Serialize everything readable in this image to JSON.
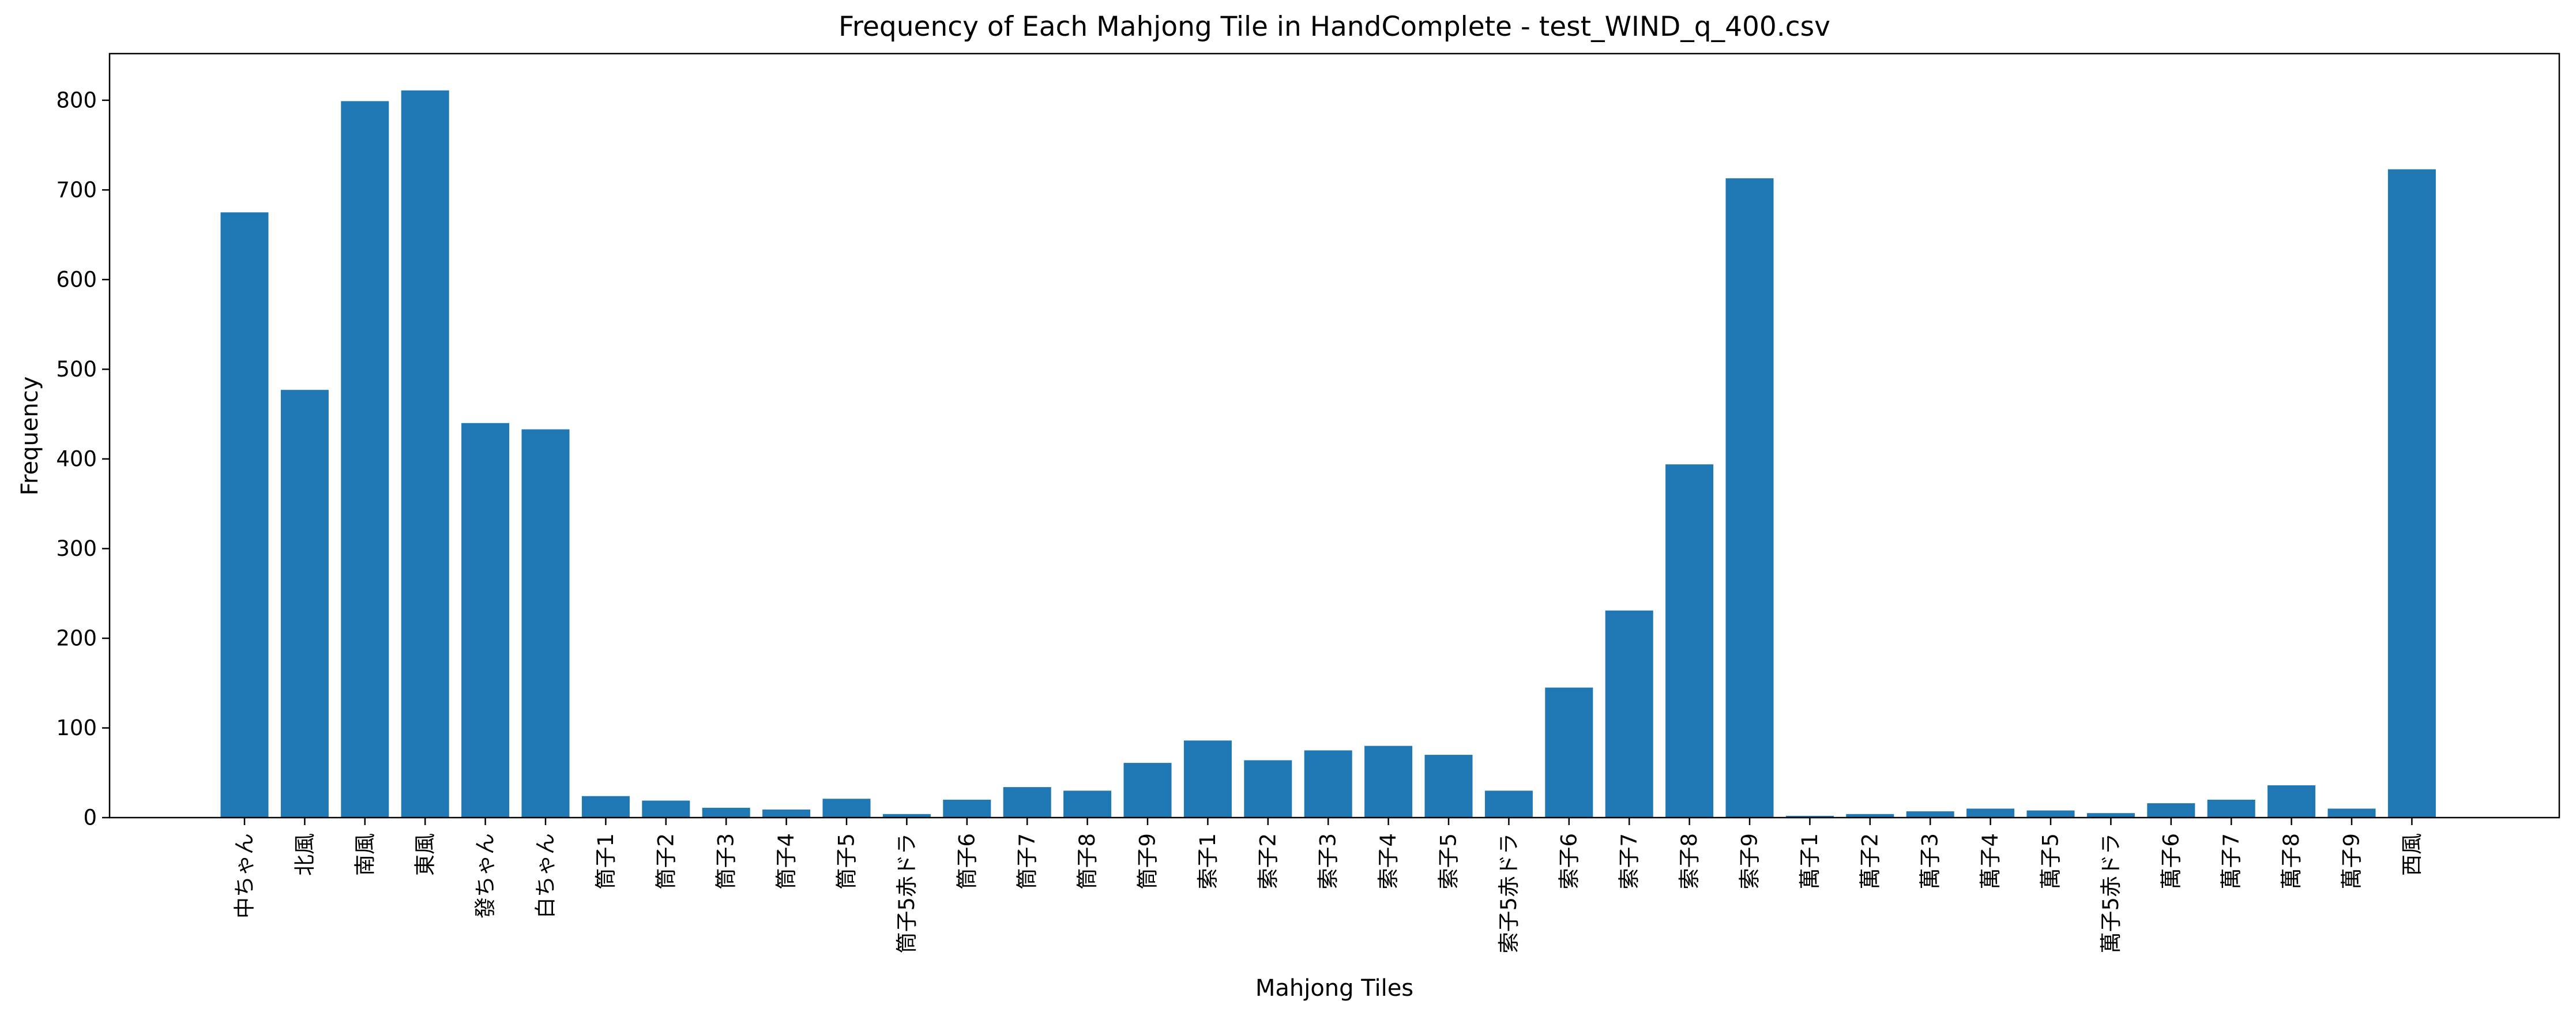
{
  "chart_data": {
    "type": "bar",
    "title": "Frequency of Each Mahjong Tile in HandComplete - test_WIND_q_400.csv",
    "xlabel": "Mahjong Tiles",
    "ylabel": "Frequency",
    "ylim": [
      0,
      852
    ],
    "yticks": [
      0,
      100,
      200,
      300,
      400,
      500,
      600,
      700,
      800
    ],
    "bar_color": "#1f77b4",
    "grid": false,
    "categories": [
      "中ちゃん",
      "北風",
      "南風",
      "東風",
      "發ちゃん",
      "白ちゃん",
      "筒子1",
      "筒子2",
      "筒子3",
      "筒子4",
      "筒子5",
      "筒子5赤ドラ",
      "筒子6",
      "筒子7",
      "筒子8",
      "筒子9",
      "索子1",
      "索子2",
      "索子3",
      "索子4",
      "索子5",
      "索子5赤ドラ",
      "索子6",
      "索子7",
      "索子8",
      "索子9",
      "萬子1",
      "萬子2",
      "萬子3",
      "萬子4",
      "萬子5",
      "萬子5赤ドラ",
      "萬子6",
      "萬子7",
      "萬子8",
      "萬子9",
      "西風"
    ],
    "values": [
      675,
      477,
      799,
      811,
      440,
      433,
      24,
      19,
      11,
      9,
      21,
      4,
      20,
      34,
      30,
      61,
      86,
      64,
      75,
      80,
      70,
      30,
      145,
      231,
      394,
      713,
      2,
      4,
      7,
      10,
      8,
      5,
      16,
      20,
      36,
      10,
      723
    ]
  }
}
